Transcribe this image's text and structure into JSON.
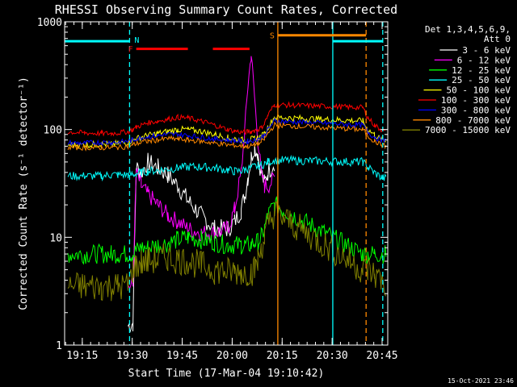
{
  "chart_data": {
    "type": "line",
    "title": "RHESSI Observing Summary Count Rates, Corrected",
    "xlabel": "Start Time (17-Mar-04 19:10:42)",
    "ylabel": "Corrected Count Rate (s⁻¹ detector⁻¹)",
    "yscale": "log",
    "ylim": [
      1,
      1000
    ],
    "xlim_minutes": [
      -1,
      96
    ],
    "x_tick_labels": [
      "19:15",
      "19:30",
      "19:45",
      "20:00",
      "20:15",
      "20:30",
      "20:45"
    ],
    "x_tick_minutes": [
      4.3,
      19.3,
      34.3,
      49.3,
      64.3,
      79.3,
      94.3
    ],
    "y_tick_labels": [
      "1",
      "10",
      "100",
      "1000"
    ],
    "y_tick_values": [
      1,
      10,
      100,
      1000
    ],
    "legend_header": [
      "Det 1,3,4,5,6,9,",
      "Att 0"
    ],
    "legend_position": "right",
    "footer_timestamp": "15-Oct-2021 23:46",
    "x_minutes_sample_points": [
      0,
      5,
      10,
      13,
      15,
      18,
      19.5,
      20.5,
      22,
      24,
      27,
      30,
      33,
      36,
      40,
      44,
      48,
      50,
      52,
      53,
      54,
      55,
      56,
      57,
      58,
      59,
      60,
      62,
      88.5,
      90,
      92,
      94,
      95.5
    ],
    "series": [
      {
        "name": "3 - 6 keV",
        "color": "#ffffff",
        "values": [
          null,
          null,
          null,
          null,
          null,
          1.5,
          1.6,
          45,
          40,
          50,
          44,
          38,
          30,
          22,
          16,
          12,
          12,
          14,
          18,
          24,
          36,
          55,
          70,
          60,
          40,
          32,
          40,
          50,
          null,
          null,
          null,
          null,
          null
        ]
      },
      {
        "name": "6 - 12 keV",
        "color": "#ff00ff",
        "values": [
          null,
          null,
          null,
          null,
          null,
          3.5,
          3.6,
          40,
          30,
          25,
          20,
          16,
          14,
          12,
          11,
          11,
          12,
          18,
          40,
          90,
          250,
          500,
          200,
          80,
          40,
          30,
          30,
          35,
          null,
          null,
          null,
          null,
          null
        ]
      },
      {
        "name": "12 - 25 keV",
        "color": "#00ff00",
        "values": [
          7,
          7,
          7,
          7,
          7,
          7,
          7,
          7.5,
          8,
          8,
          8.5,
          8.8,
          9.5,
          10,
          9.5,
          9,
          8.5,
          8.5,
          8.5,
          8.5,
          8.5,
          8.5,
          9,
          9,
          10,
          12,
          16,
          20,
          7,
          7,
          7,
          7,
          7
        ]
      },
      {
        "name": "25 - 50 keV",
        "color": "#00ffff",
        "values": [
          37,
          37,
          37,
          38,
          38,
          38,
          38,
          39,
          40,
          41,
          42,
          43,
          44,
          45,
          45,
          44,
          42,
          41,
          41,
          42,
          43,
          44,
          45,
          46,
          47,
          48,
          50,
          52,
          50,
          45,
          40,
          36,
          35
        ]
      },
      {
        "name": "50 - 100 keV",
        "color": "#ffff00",
        "values": [
          72,
          72,
          73,
          73,
          74,
          76,
          80,
          82,
          85,
          88,
          92,
          96,
          100,
          100,
          96,
          90,
          84,
          82,
          80,
          80,
          80,
          81,
          82,
          84,
          86,
          92,
          105,
          130,
          120,
          100,
          90,
          80,
          78
        ]
      },
      {
        "name": "100 - 300 keV",
        "color": "#ff0000",
        "values": [
          95,
          93,
          92,
          92,
          93,
          96,
          100,
          105,
          110,
          115,
          120,
          125,
          130,
          128,
          120,
          110,
          100,
          97,
          95,
          95,
          95,
          96,
          98,
          100,
          104,
          115,
          135,
          170,
          160,
          130,
          110,
          100,
          95
        ]
      },
      {
        "name": "300 - 800 keV",
        "color": "#0000ff",
        "values": [
          75,
          75,
          76,
          76,
          76,
          78,
          80,
          82,
          84,
          86,
          88,
          90,
          90,
          88,
          85,
          82,
          80,
          79,
          78,
          78,
          78,
          79,
          80,
          82,
          84,
          90,
          100,
          120,
          110,
          95,
          85,
          80,
          78
        ]
      },
      {
        "name": "800 - 7000 keV",
        "color": "#ff8800",
        "values": [
          68,
          68,
          68,
          68,
          68,
          70,
          72,
          74,
          76,
          78,
          80,
          82,
          82,
          80,
          78,
          75,
          72,
          71,
          70,
          70,
          70,
          71,
          72,
          74,
          76,
          82,
          92,
          110,
          100,
          88,
          78,
          72,
          70
        ]
      },
      {
        "name": "7000 - 15000 keV",
        "color": "#808000",
        "values": [
          3.5,
          3.5,
          3.5,
          3.5,
          3.5,
          3.5,
          5,
          5.5,
          5.8,
          6,
          6.2,
          6.5,
          6.2,
          6,
          5.5,
          5,
          4.8,
          4.8,
          4.8,
          4.8,
          4.8,
          4.8,
          5,
          6,
          8,
          10,
          13,
          17,
          5,
          5,
          4.5,
          4,
          3.5
        ]
      }
    ],
    "flag_bars": [
      {
        "label": "",
        "color": "#00ffff",
        "x_start": -1,
        "x_end": 18.5,
        "y": 660
      },
      {
        "label": "N",
        "color": "#00ffff",
        "x_start": 18.5,
        "x_end": 18.5,
        "y": 660
      },
      {
        "label": "",
        "color": "#00ffff",
        "x_start": 79.5,
        "x_end": 94.5,
        "y": 660
      },
      {
        "label": "F",
        "color": "#ff0000",
        "x_start": 20.5,
        "x_end": 36,
        "y": 560
      },
      {
        "label": "",
        "color": "#ff0000",
        "x_start": 43.5,
        "x_end": 54.5,
        "y": 560
      },
      {
        "label": "S",
        "color": "#ff8800",
        "x_start": 63,
        "x_end": 89.5,
        "y": 750
      }
    ],
    "vertical_lines": [
      {
        "x": 18.5,
        "color": "#00ffff",
        "style": "dashed"
      },
      {
        "x": 63,
        "color": "#ff8800",
        "style": "solid"
      },
      {
        "x": 79.5,
        "color": "#00ffff",
        "style": "solid"
      },
      {
        "x": 89.5,
        "color": "#ff8800",
        "style": "dashed"
      },
      {
        "x": 94.5,
        "color": "#00ffff",
        "style": "dashed"
      }
    ]
  }
}
